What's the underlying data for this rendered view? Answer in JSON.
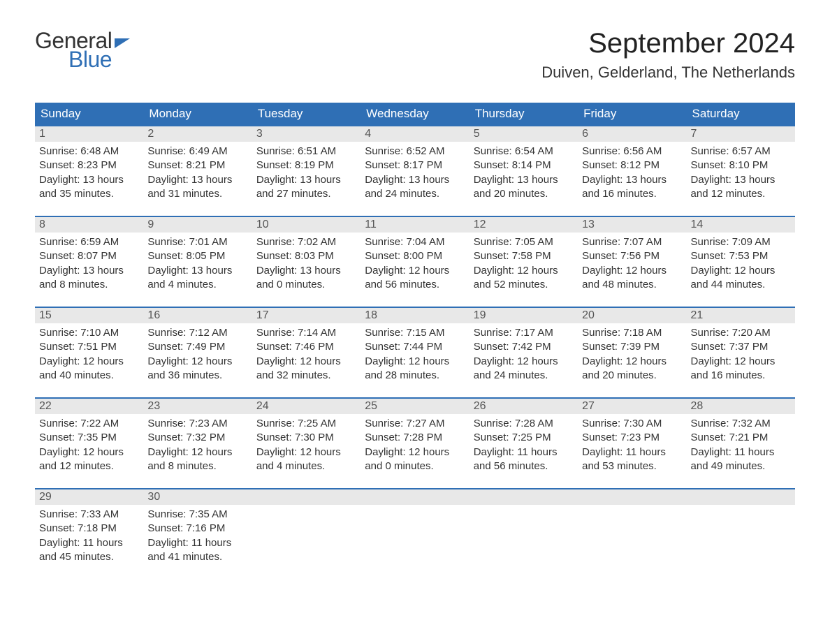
{
  "logo": {
    "word1": "General",
    "word2": "Blue",
    "accent_color": "#2f6fb5"
  },
  "title": "September 2024",
  "location": "Duiven, Gelderland, The Netherlands",
  "colors": {
    "header_bg": "#2f6fb5",
    "header_text": "#ffffff",
    "daynum_bg": "#e8e8e8",
    "daynum_border": "#2f6fb5",
    "text": "#333333",
    "background": "#ffffff"
  },
  "day_headers": [
    "Sunday",
    "Monday",
    "Tuesday",
    "Wednesday",
    "Thursday",
    "Friday",
    "Saturday"
  ],
  "weeks": [
    [
      {
        "n": "1",
        "sunrise": "Sunrise: 6:48 AM",
        "sunset": "Sunset: 8:23 PM",
        "dl1": "Daylight: 13 hours",
        "dl2": "and 35 minutes."
      },
      {
        "n": "2",
        "sunrise": "Sunrise: 6:49 AM",
        "sunset": "Sunset: 8:21 PM",
        "dl1": "Daylight: 13 hours",
        "dl2": "and 31 minutes."
      },
      {
        "n": "3",
        "sunrise": "Sunrise: 6:51 AM",
        "sunset": "Sunset: 8:19 PM",
        "dl1": "Daylight: 13 hours",
        "dl2": "and 27 minutes."
      },
      {
        "n": "4",
        "sunrise": "Sunrise: 6:52 AM",
        "sunset": "Sunset: 8:17 PM",
        "dl1": "Daylight: 13 hours",
        "dl2": "and 24 minutes."
      },
      {
        "n": "5",
        "sunrise": "Sunrise: 6:54 AM",
        "sunset": "Sunset: 8:14 PM",
        "dl1": "Daylight: 13 hours",
        "dl2": "and 20 minutes."
      },
      {
        "n": "6",
        "sunrise": "Sunrise: 6:56 AM",
        "sunset": "Sunset: 8:12 PM",
        "dl1": "Daylight: 13 hours",
        "dl2": "and 16 minutes."
      },
      {
        "n": "7",
        "sunrise": "Sunrise: 6:57 AM",
        "sunset": "Sunset: 8:10 PM",
        "dl1": "Daylight: 13 hours",
        "dl2": "and 12 minutes."
      }
    ],
    [
      {
        "n": "8",
        "sunrise": "Sunrise: 6:59 AM",
        "sunset": "Sunset: 8:07 PM",
        "dl1": "Daylight: 13 hours",
        "dl2": "and 8 minutes."
      },
      {
        "n": "9",
        "sunrise": "Sunrise: 7:01 AM",
        "sunset": "Sunset: 8:05 PM",
        "dl1": "Daylight: 13 hours",
        "dl2": "and 4 minutes."
      },
      {
        "n": "10",
        "sunrise": "Sunrise: 7:02 AM",
        "sunset": "Sunset: 8:03 PM",
        "dl1": "Daylight: 13 hours",
        "dl2": "and 0 minutes."
      },
      {
        "n": "11",
        "sunrise": "Sunrise: 7:04 AM",
        "sunset": "Sunset: 8:00 PM",
        "dl1": "Daylight: 12 hours",
        "dl2": "and 56 minutes."
      },
      {
        "n": "12",
        "sunrise": "Sunrise: 7:05 AM",
        "sunset": "Sunset: 7:58 PM",
        "dl1": "Daylight: 12 hours",
        "dl2": "and 52 minutes."
      },
      {
        "n": "13",
        "sunrise": "Sunrise: 7:07 AM",
        "sunset": "Sunset: 7:56 PM",
        "dl1": "Daylight: 12 hours",
        "dl2": "and 48 minutes."
      },
      {
        "n": "14",
        "sunrise": "Sunrise: 7:09 AM",
        "sunset": "Sunset: 7:53 PM",
        "dl1": "Daylight: 12 hours",
        "dl2": "and 44 minutes."
      }
    ],
    [
      {
        "n": "15",
        "sunrise": "Sunrise: 7:10 AM",
        "sunset": "Sunset: 7:51 PM",
        "dl1": "Daylight: 12 hours",
        "dl2": "and 40 minutes."
      },
      {
        "n": "16",
        "sunrise": "Sunrise: 7:12 AM",
        "sunset": "Sunset: 7:49 PM",
        "dl1": "Daylight: 12 hours",
        "dl2": "and 36 minutes."
      },
      {
        "n": "17",
        "sunrise": "Sunrise: 7:14 AM",
        "sunset": "Sunset: 7:46 PM",
        "dl1": "Daylight: 12 hours",
        "dl2": "and 32 minutes."
      },
      {
        "n": "18",
        "sunrise": "Sunrise: 7:15 AM",
        "sunset": "Sunset: 7:44 PM",
        "dl1": "Daylight: 12 hours",
        "dl2": "and 28 minutes."
      },
      {
        "n": "19",
        "sunrise": "Sunrise: 7:17 AM",
        "sunset": "Sunset: 7:42 PM",
        "dl1": "Daylight: 12 hours",
        "dl2": "and 24 minutes."
      },
      {
        "n": "20",
        "sunrise": "Sunrise: 7:18 AM",
        "sunset": "Sunset: 7:39 PM",
        "dl1": "Daylight: 12 hours",
        "dl2": "and 20 minutes."
      },
      {
        "n": "21",
        "sunrise": "Sunrise: 7:20 AM",
        "sunset": "Sunset: 7:37 PM",
        "dl1": "Daylight: 12 hours",
        "dl2": "and 16 minutes."
      }
    ],
    [
      {
        "n": "22",
        "sunrise": "Sunrise: 7:22 AM",
        "sunset": "Sunset: 7:35 PM",
        "dl1": "Daylight: 12 hours",
        "dl2": "and 12 minutes."
      },
      {
        "n": "23",
        "sunrise": "Sunrise: 7:23 AM",
        "sunset": "Sunset: 7:32 PM",
        "dl1": "Daylight: 12 hours",
        "dl2": "and 8 minutes."
      },
      {
        "n": "24",
        "sunrise": "Sunrise: 7:25 AM",
        "sunset": "Sunset: 7:30 PM",
        "dl1": "Daylight: 12 hours",
        "dl2": "and 4 minutes."
      },
      {
        "n": "25",
        "sunrise": "Sunrise: 7:27 AM",
        "sunset": "Sunset: 7:28 PM",
        "dl1": "Daylight: 12 hours",
        "dl2": "and 0 minutes."
      },
      {
        "n": "26",
        "sunrise": "Sunrise: 7:28 AM",
        "sunset": "Sunset: 7:25 PM",
        "dl1": "Daylight: 11 hours",
        "dl2": "and 56 minutes."
      },
      {
        "n": "27",
        "sunrise": "Sunrise: 7:30 AM",
        "sunset": "Sunset: 7:23 PM",
        "dl1": "Daylight: 11 hours",
        "dl2": "and 53 minutes."
      },
      {
        "n": "28",
        "sunrise": "Sunrise: 7:32 AM",
        "sunset": "Sunset: 7:21 PM",
        "dl1": "Daylight: 11 hours",
        "dl2": "and 49 minutes."
      }
    ],
    [
      {
        "n": "29",
        "sunrise": "Sunrise: 7:33 AM",
        "sunset": "Sunset: 7:18 PM",
        "dl1": "Daylight: 11 hours",
        "dl2": "and 45 minutes."
      },
      {
        "n": "30",
        "sunrise": "Sunrise: 7:35 AM",
        "sunset": "Sunset: 7:16 PM",
        "dl1": "Daylight: 11 hours",
        "dl2": "and 41 minutes."
      },
      {
        "empty": true
      },
      {
        "empty": true
      },
      {
        "empty": true
      },
      {
        "empty": true
      },
      {
        "empty": true
      }
    ]
  ]
}
